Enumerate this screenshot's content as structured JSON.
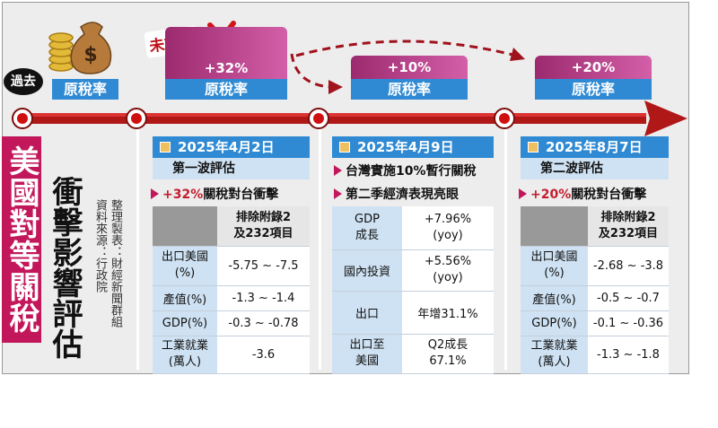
{
  "title_col1": "美國對等關稅",
  "title_col2": "衝擊影響評估",
  "credit1": "整理製表：財經新聞群組",
  "credit2": "資料來源：行政院",
  "past_label": "過去",
  "not_implemented_label": "未施行",
  "tax_label": "原稅率",
  "rates": {
    "rate1": "+32%",
    "rate2": "+10%",
    "rate3": "+20%"
  },
  "col1": {
    "date": "2025年4月2日",
    "subtitle": "第一波評估",
    "bullet_rate": "+32%",
    "bullet_text": "關稅對台衝擊",
    "table": {
      "header": "排除附錄2\n及232項目",
      "rows": [
        {
          "label": "出口美國\n(%)",
          "value": "-5.75 ~ -7.5"
        },
        {
          "label": "產值(%)",
          "value": "-1.3 ~ -1.4"
        },
        {
          "label": "GDP(%)",
          "value": "-0.3 ~ -0.78"
        },
        {
          "label": "工業就業\n(萬人)",
          "value": "-3.6"
        }
      ]
    }
  },
  "col2": {
    "date": "2025年4月9日",
    "bullet1": "台灣實施10%暫行關稅",
    "bullet2": "第二季經濟表現亮眼",
    "table": {
      "rows": [
        {
          "label": "GDP\n成長",
          "value": "+7.96%\n(yoy)"
        },
        {
          "label": "國內投資",
          "value": "+5.56%\n(yoy)"
        },
        {
          "label": "出口",
          "value": "年增31.1%"
        },
        {
          "label": "出口至\n美國",
          "value": "Q2成長\n67.1%"
        }
      ]
    }
  },
  "col3": {
    "date": "2025年8月7日",
    "subtitle": "第二波評估",
    "bullet_rate": "+20%",
    "bullet_text": "關稅對台衝擊",
    "table": {
      "header": "排除附錄2\n及232項目",
      "rows": [
        {
          "label": "出口美國\n(%)",
          "value": "-2.68 ~ -3.8"
        },
        {
          "label": "產值(%)",
          "value": "-0.5 ~ -0.7"
        },
        {
          "label": "GDP(%)",
          "value": "-0.1 ~ -0.36"
        },
        {
          "label": "工業就業\n(萬人)",
          "value": "-1.3 ~ -1.8"
        }
      ]
    }
  },
  "icons": {
    "money": "money-bag-coins-icon",
    "cross": "red-x-icon",
    "arrow": "timeline-arrow-icon"
  }
}
